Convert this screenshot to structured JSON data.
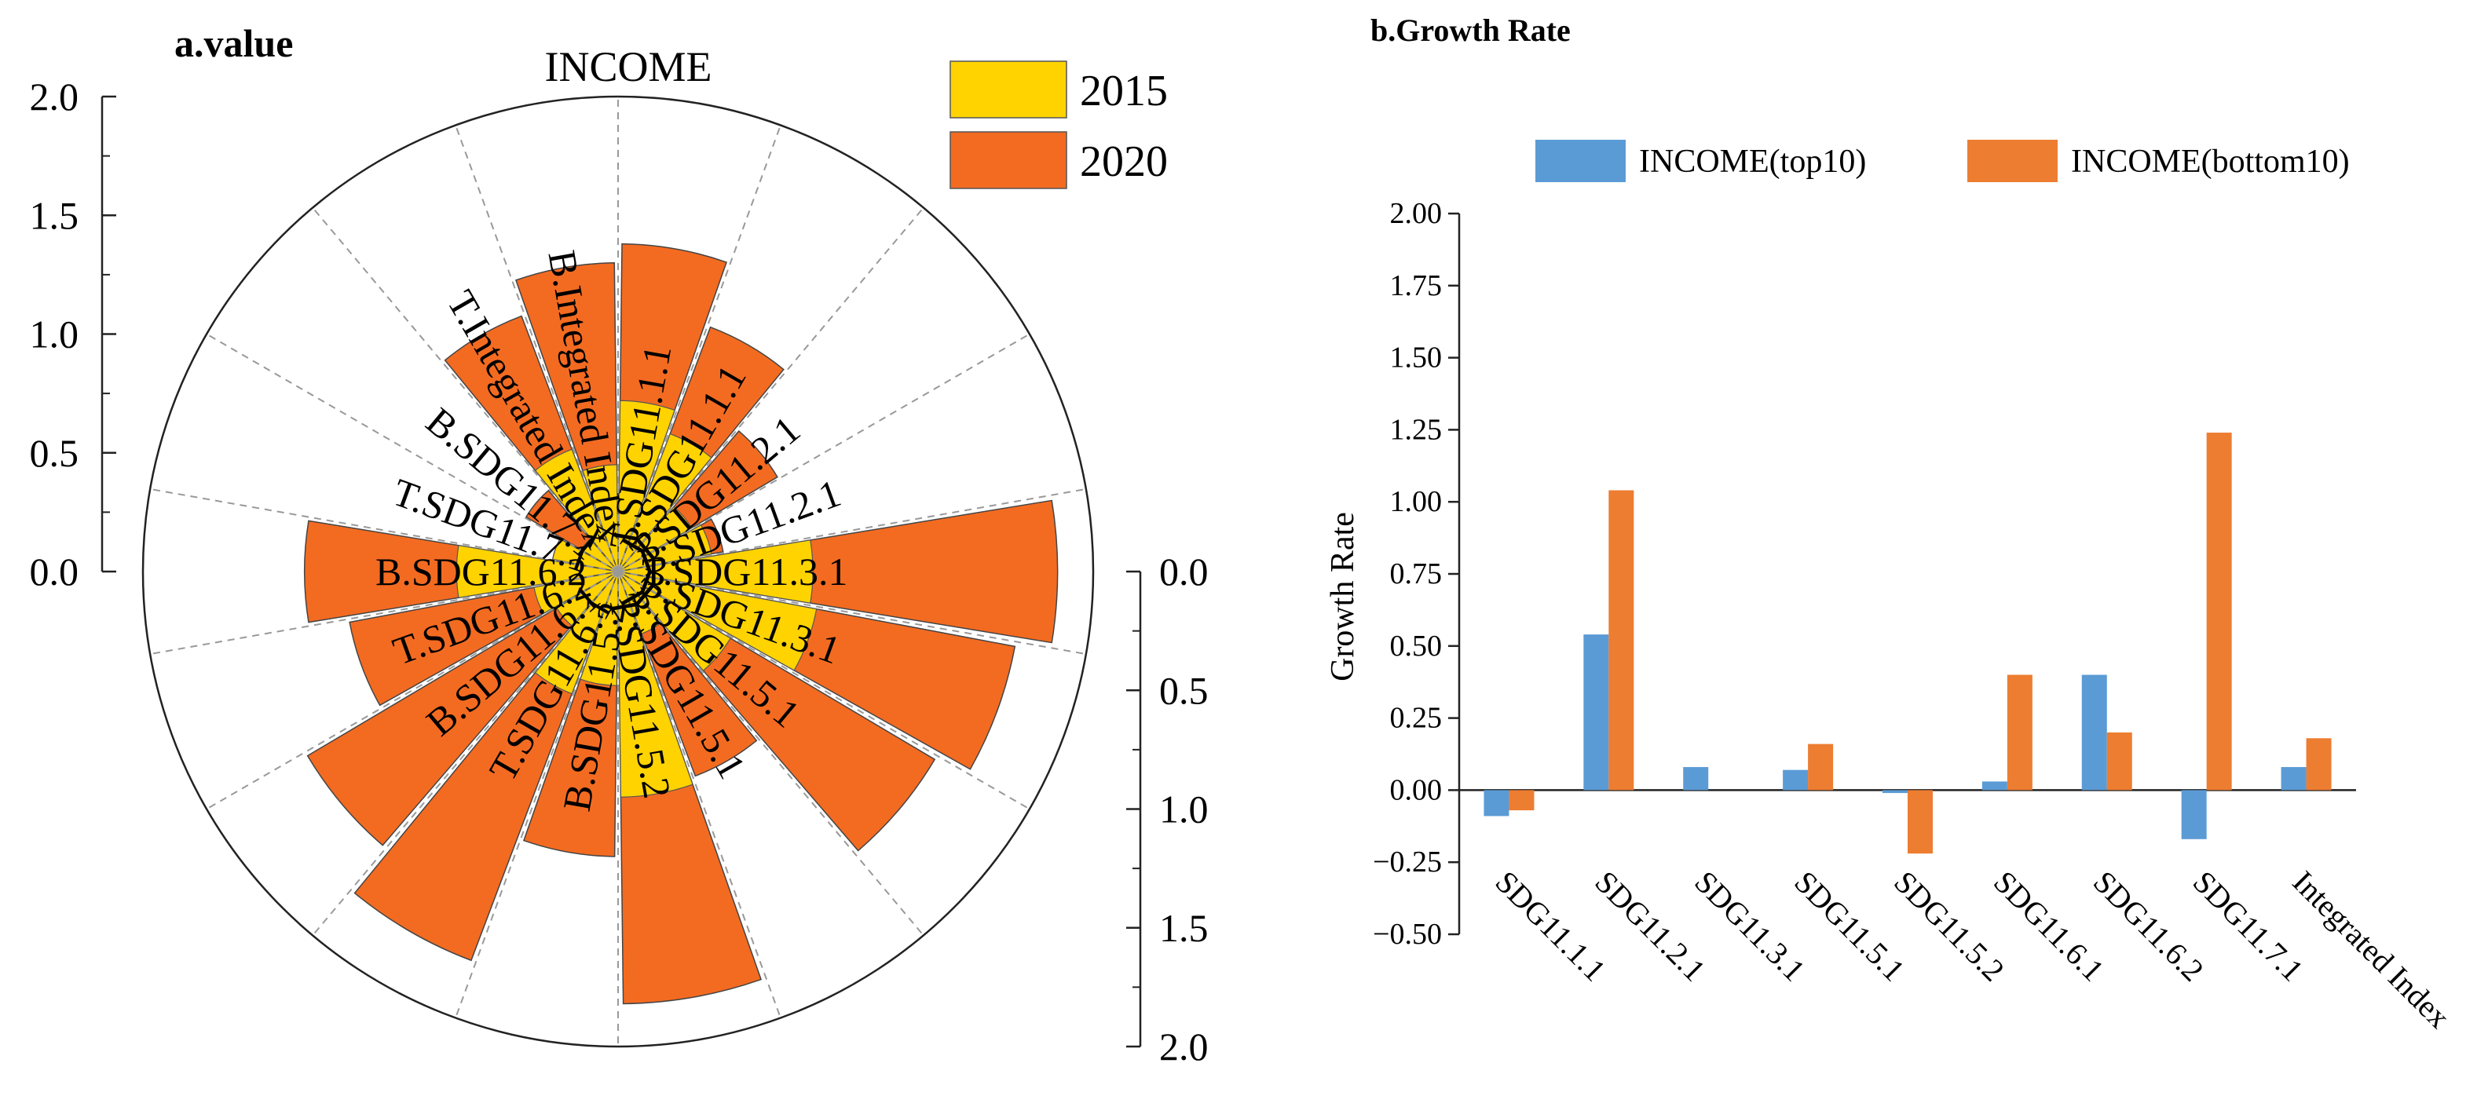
{
  "chart_data": [
    {
      "type": "polar-bar",
      "title": "a.value",
      "top_label": "INCOME",
      "legend": [
        {
          "name": "2015",
          "color": "#FFD300"
        },
        {
          "name": "2020",
          "color": "#F36B21"
        }
      ],
      "radial_axis_left": {
        "ticks": [
          "0.0",
          "0.5",
          "1.0",
          "1.5",
          "2.0"
        ],
        "range": [
          0,
          2
        ]
      },
      "radial_axis_right": {
        "ticks": [
          "0.0",
          "0.5",
          "1.0",
          "1.5",
          "2.0"
        ],
        "range": [
          0,
          2
        ]
      },
      "categories": [
        "T.SDG11.1.1",
        "B.SDG11.1.1",
        "T.SDG11.2.1",
        "B.SDG11.2.1",
        "T.SDG11.3.1",
        "B.SDG11.3.1",
        "T.SDG11.5.1",
        "B.SDG11.5.1",
        "T.SDG11.5.2",
        "B.SDG11.5.2",
        "T.SDG11.6.1",
        "B.SDG11.6.1",
        "T.SDG11.6.2",
        "B.SDG11.6.2",
        "T.SDG11.7.1",
        "B.SDG11.7.1",
        "T.Integrated Index",
        "B.Integrated Index"
      ],
      "series": [
        {
          "name": "2015",
          "values": [
            0.72,
            0.62,
            0.36,
            0.4,
            0.82,
            0.85,
            0.55,
            0.28,
            0.95,
            0.48,
            0.55,
            0.3,
            0.36,
            0.68,
            0.28,
            0.18,
            0.55,
            0.45
          ]
        },
        {
          "name": "2020",
          "values": [
            1.38,
            1.1,
            0.78,
            0.45,
            1.85,
            1.7,
            1.55,
            0.92,
            1.82,
            1.2,
            1.75,
            1.52,
            1.15,
            1.32,
            0.28,
            0.45,
            1.15,
            1.3
          ]
        }
      ]
    },
    {
      "type": "bar",
      "title": "b.Growth Rate",
      "xlabel": "",
      "ylabel": "Growth Rate",
      "ylim": [
        -0.5,
        2.0
      ],
      "yticks": [
        "−0.50",
        "−0.25",
        "0.00",
        "0.25",
        "0.50",
        "0.75",
        "1.00",
        "1.25",
        "1.50",
        "1.75",
        "2.00"
      ],
      "categories": [
        "SDG11.1.1",
        "SDG11.2.1",
        "SDG11.3.1",
        "SDG11.5.1",
        "SDG11.5.2",
        "SDG11.6.1",
        "SDG11.6.2",
        "SDG11.7.1",
        "Integrated Index"
      ],
      "series": [
        {
          "name": "INCOME(top10)",
          "color": "#5B9BD5",
          "values": [
            -0.09,
            0.54,
            0.08,
            0.07,
            -0.01,
            0.03,
            0.4,
            -0.17,
            0.08
          ]
        },
        {
          "name": "INCOME(bottom10)",
          "color": "#ED7D31",
          "values": [
            -0.07,
            1.04,
            0.0,
            0.16,
            -0.22,
            0.4,
            0.2,
            1.24,
            0.18
          ]
        }
      ]
    }
  ]
}
